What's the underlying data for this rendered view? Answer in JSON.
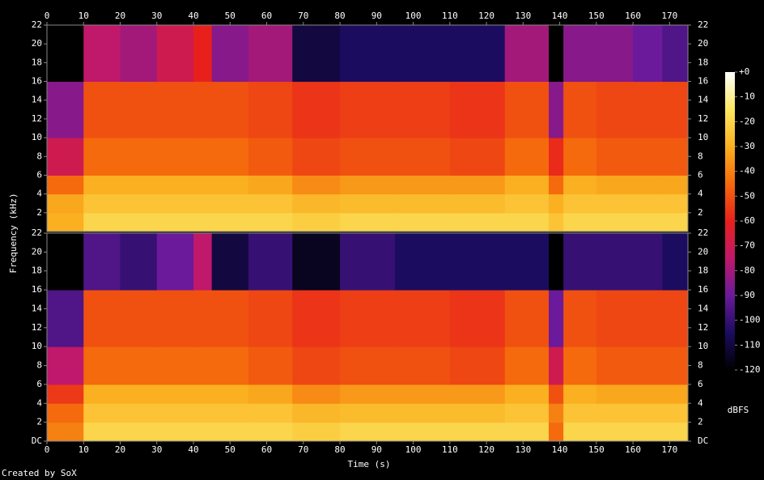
{
  "chart_data": [
    {
      "type": "heatmap",
      "ylabel": "Frequency (kHz)",
      "xlim": [
        0,
        175
      ],
      "xticks": [
        0,
        10,
        20,
        30,
        40,
        50,
        60,
        70,
        80,
        90,
        100,
        110,
        120,
        130,
        140,
        150,
        160,
        170
      ],
      "ylim": [
        0,
        22
      ],
      "yticks": [
        2,
        4,
        6,
        8,
        10,
        12,
        14,
        16,
        18,
        20,
        22
      ],
      "x_edges": [
        0,
        10,
        20,
        30,
        40,
        45,
        55,
        67,
        80,
        95,
        110,
        125,
        137,
        141,
        150,
        160,
        168,
        175
      ],
      "y_edges": [
        0,
        2,
        4,
        6,
        10,
        16,
        22
      ],
      "z": [
        [
          -30,
          -20,
          -20,
          -20,
          -20,
          -20,
          -20,
          -22,
          -20,
          -20,
          -20,
          -20,
          -25,
          -20,
          -20,
          -20,
          -20
        ],
        [
          -32,
          -25,
          -25,
          -25,
          -25,
          -25,
          -25,
          -28,
          -27,
          -27,
          -27,
          -25,
          -30,
          -25,
          -25,
          -25,
          -25
        ],
        [
          -45,
          -30,
          -30,
          -30,
          -30,
          -30,
          -32,
          -38,
          -35,
          -35,
          -35,
          -30,
          -45,
          -30,
          -32,
          -32,
          -32
        ],
        [
          -70,
          -45,
          -45,
          -45,
          -45,
          -45,
          -48,
          -52,
          -50,
          -50,
          -52,
          -45,
          -58,
          -45,
          -48,
          -48,
          -48
        ],
        [
          -85,
          -50,
          -50,
          -50,
          -50,
          -50,
          -52,
          -56,
          -54,
          -54,
          -56,
          -50,
          -85,
          -50,
          -52,
          -52,
          -52
        ],
        [
          -120,
          -75,
          -80,
          -70,
          -60,
          -85,
          -80,
          -110,
          -105,
          -105,
          -105,
          -80,
          -120,
          -85,
          -85,
          -90,
          -95
        ]
      ]
    },
    {
      "type": "heatmap",
      "xlabel": "Time (s)",
      "xlim": [
        0,
        175
      ],
      "xticks": [
        0,
        10,
        20,
        30,
        40,
        50,
        60,
        70,
        80,
        90,
        100,
        110,
        120,
        130,
        140,
        150,
        160,
        170
      ],
      "ylim": [
        0,
        22
      ],
      "yticks": [
        {
          "value": 0,
          "label": "DC"
        },
        2,
        4,
        6,
        8,
        10,
        12,
        14,
        16,
        18,
        20,
        22
      ],
      "x_edges": [
        0,
        10,
        20,
        30,
        40,
        45,
        55,
        67,
        80,
        95,
        110,
        125,
        137,
        141,
        150,
        160,
        168,
        175
      ],
      "y_edges": [
        0,
        2,
        4,
        6,
        10,
        16,
        22
      ],
      "z": [
        [
          -40,
          -20,
          -20,
          -20,
          -20,
          -20,
          -20,
          -22,
          -20,
          -20,
          -20,
          -20,
          -45,
          -20,
          -20,
          -20,
          -20
        ],
        [
          -45,
          -25,
          -25,
          -25,
          -25,
          -25,
          -25,
          -28,
          -27,
          -27,
          -27,
          -25,
          -40,
          -25,
          -25,
          -25,
          -25
        ],
        [
          -55,
          -30,
          -30,
          -30,
          -30,
          -30,
          -32,
          -38,
          -35,
          -35,
          -35,
          -30,
          -50,
          -30,
          -32,
          -32,
          -32
        ],
        [
          -75,
          -45,
          -45,
          -45,
          -45,
          -45,
          -48,
          -52,
          -50,
          -50,
          -52,
          -45,
          -70,
          -45,
          -48,
          -48,
          -48
        ],
        [
          -95,
          -50,
          -50,
          -50,
          -50,
          -50,
          -52,
          -56,
          -54,
          -54,
          -56,
          -50,
          -90,
          -50,
          -52,
          -52,
          -52
        ],
        [
          -120,
          -95,
          -100,
          -90,
          -75,
          -110,
          -100,
          -115,
          -100,
          -105,
          -105,
          -105,
          -120,
          -100,
          -100,
          -100,
          -105
        ]
      ]
    }
  ],
  "colorbar": {
    "label": "dBFS",
    "lim": [
      -120,
      0
    ],
    "ticks": [
      {
        "value": 0,
        "label": "+0"
      },
      -10,
      -20,
      -30,
      -40,
      -50,
      -60,
      -70,
      -80,
      -90,
      -100,
      -110,
      -120
    ],
    "colormap": [
      "#000000",
      "#1c0c60",
      "#6a1a9a",
      "#c0186a",
      "#e8201c",
      "#f46a0c",
      "#fab020",
      "#fce860",
      "#ffffff"
    ]
  },
  "credit": "Created by SoX"
}
